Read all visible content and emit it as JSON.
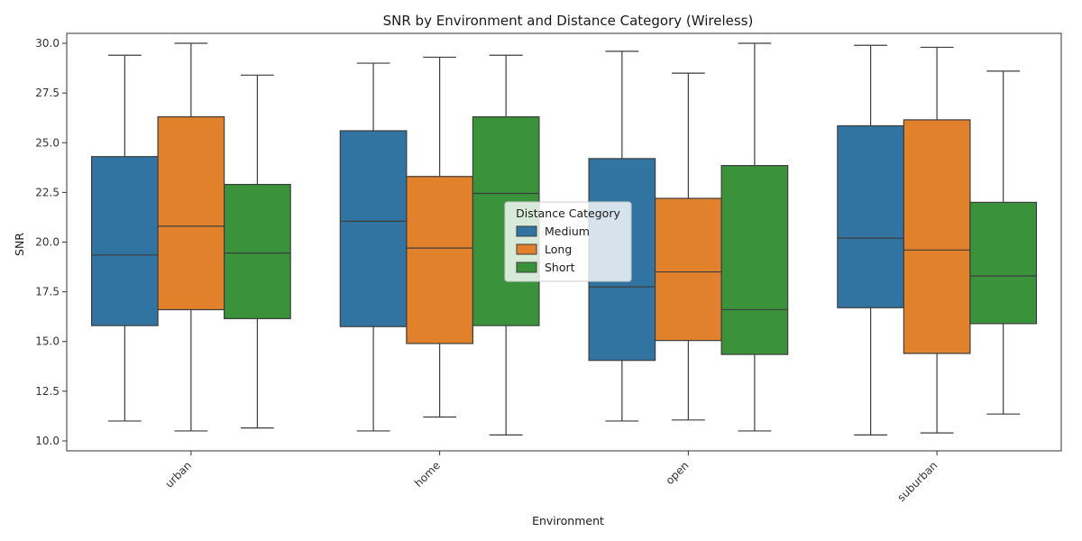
{
  "chart_data": {
    "type": "box",
    "title": "SNR by Environment and Distance Category (Wireless)",
    "xlabel": "Environment",
    "ylabel": "SNR",
    "ylim": [
      9.5,
      30.5
    ],
    "yticks": [
      "10.0",
      "12.5",
      "15.0",
      "17.5",
      "20.0",
      "22.5",
      "25.0",
      "27.5",
      "30.0"
    ],
    "categories": [
      "urban",
      "home",
      "open",
      "suburban"
    ],
    "legend": {
      "title": "Distance Category",
      "placement": "center"
    },
    "series": [
      {
        "name": "Medium",
        "color": "#3274a1",
        "boxes": [
          {
            "min": 11.0,
            "q1": 15.8,
            "median": 19.35,
            "q3": 24.3,
            "max": 29.4
          },
          {
            "min": 10.5,
            "q1": 15.75,
            "median": 21.05,
            "q3": 25.6,
            "max": 29.0
          },
          {
            "min": 11.0,
            "q1": 14.05,
            "median": 17.75,
            "q3": 24.2,
            "max": 29.6
          },
          {
            "min": 10.3,
            "q1": 16.7,
            "median": 20.2,
            "q3": 25.85,
            "max": 29.9
          }
        ]
      },
      {
        "name": "Long",
        "color": "#e1812c",
        "boxes": [
          {
            "min": 10.5,
            "q1": 16.6,
            "median": 20.8,
            "q3": 26.3,
            "max": 30.0
          },
          {
            "min": 11.2,
            "q1": 14.9,
            "median": 19.7,
            "q3": 23.3,
            "max": 29.3
          },
          {
            "min": 11.05,
            "q1": 15.05,
            "median": 18.5,
            "q3": 22.2,
            "max": 28.5
          },
          {
            "min": 10.4,
            "q1": 14.4,
            "median": 19.6,
            "q3": 26.15,
            "max": 29.8
          }
        ]
      },
      {
        "name": "Short",
        "color": "#3a923a",
        "boxes": [
          {
            "min": 10.65,
            "q1": 16.15,
            "median": 19.45,
            "q3": 22.9,
            "max": 28.4
          },
          {
            "min": 10.3,
            "q1": 15.8,
            "median": 22.45,
            "q3": 26.3,
            "max": 29.4
          },
          {
            "min": 10.5,
            "q1": 14.35,
            "median": 16.6,
            "q3": 23.85,
            "max": 30.0
          },
          {
            "min": 11.35,
            "q1": 15.9,
            "median": 18.3,
            "q3": 22.0,
            "max": 28.6
          }
        ]
      }
    ]
  }
}
